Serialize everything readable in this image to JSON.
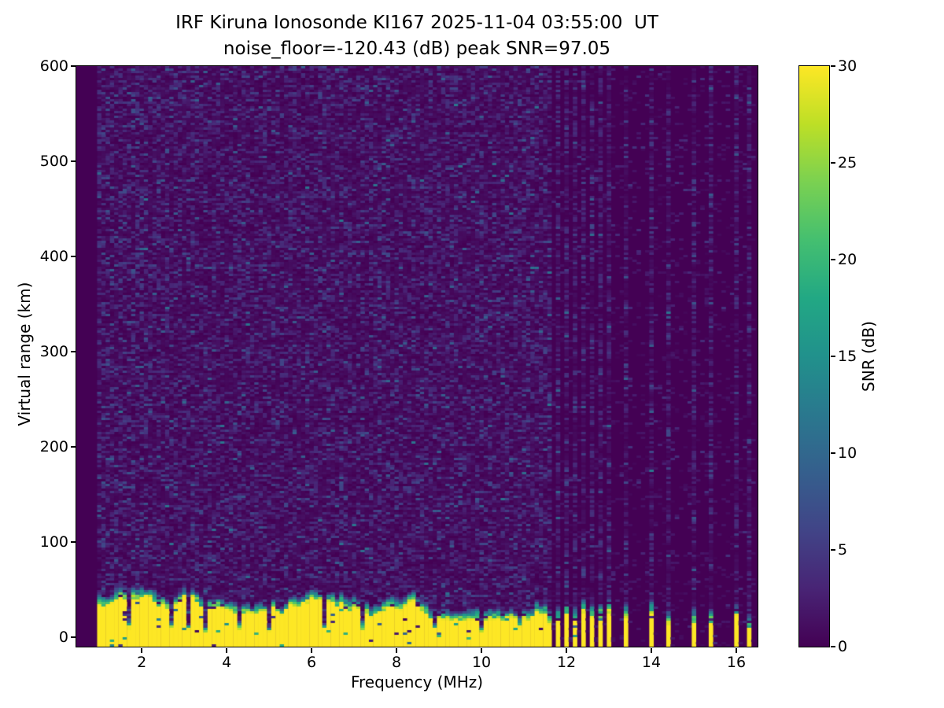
{
  "title": {
    "line1": "IRF Kiruna Ionosonde KI167 2025-11-04 03:55:00  UT",
    "line2": "noise_floor=-120.43 (dB) peak SNR=97.05"
  },
  "axes": {
    "xlabel": "Frequency (MHz)",
    "ylabel": "Virtual range (km)",
    "x_ticks": [
      2,
      4,
      6,
      8,
      10,
      12,
      14,
      16
    ],
    "y_ticks": [
      0,
      100,
      200,
      300,
      400,
      500,
      600
    ]
  },
  "colorbar": {
    "label": "SNR (dB)",
    "ticks": [
      0,
      5,
      10,
      15,
      20,
      25,
      30
    ],
    "min": 0,
    "max": 30
  },
  "colors": {
    "background": "#ffffff",
    "spine": "#000000",
    "text": "#000000",
    "viridis_stops": [
      "#440154",
      "#482475",
      "#414487",
      "#355f8d",
      "#2a788e",
      "#21918c",
      "#22a884",
      "#44bf70",
      "#7ad151",
      "#bddf26",
      "#fde725"
    ]
  },
  "chart_data": {
    "type": "heatmap",
    "title": "IRF Kiruna Ionosonde KI167 2025-11-04 03:55:00  UT",
    "subtitle": "noise_floor=-120.43 (dB) peak SNR=97.05",
    "station": "IRF Kiruna Ionosonde KI167",
    "timestamp_ut": "2025-11-04 03:55:00",
    "noise_floor_db": -120.43,
    "peak_snr_db": 97.05,
    "xlabel": "Frequency (MHz)",
    "ylabel": "Virtual range (km)",
    "colorbar_label": "SNR (dB)",
    "colormap": "viridis",
    "snr_scale_db": {
      "min": 0,
      "max": 30
    },
    "xlim_mhz": [
      0.46,
      16.5
    ],
    "ylim_km": [
      -9.9,
      600
    ],
    "freq_min_mhz": 1.0,
    "freq_max_mhz": 16.4,
    "freq_step_mhz": 0.1,
    "range_row_km": 2.48,
    "continuous_band_mhz": [
      1.0,
      11.5
    ],
    "dense_stripe_freqs_mhz": [
      11.6,
      11.8,
      12.0,
      12.2,
      12.4,
      12.6,
      12.8,
      13.0
    ],
    "sparse_stripe_freqs_mhz": [
      13.4,
      14.0,
      14.4,
      15.0,
      15.4,
      16.0,
      16.3
    ],
    "band_notch_freqs_mhz": [
      1.7,
      2.7,
      3.1,
      3.5,
      4.3,
      5.0,
      6.3,
      7.2,
      8.9,
      10.0,
      10.9
    ],
    "ground_echo": {
      "snr_db": 30,
      "top_km_range": [
        18,
        42
      ],
      "cap_thickness_km_range": [
        8,
        16
      ],
      "stripe_top_km_range": [
        12,
        26
      ],
      "stripe_cap_km_range": [
        12,
        22
      ],
      "notch_top_km_range": [
        5,
        12
      ]
    },
    "background_noise_db_range": [
      0,
      12
    ],
    "seed": 20251104
  },
  "layout_note": {}
}
